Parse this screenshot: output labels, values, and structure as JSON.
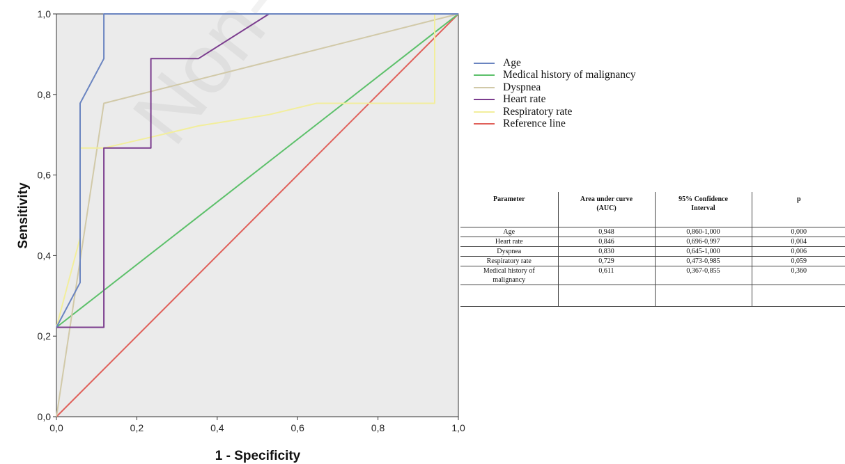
{
  "chart_data": {
    "type": "line",
    "xlabel": "1 - Specificity",
    "ylabel": "Sensitivity",
    "xlim": [
      0,
      1
    ],
    "ylim": [
      0,
      1
    ],
    "xticks": [
      "0,0",
      "0,2",
      "0,4",
      "0,6",
      "0,8",
      "1,0"
    ],
    "yticks": [
      "0,0",
      "0,2",
      "0,4",
      "0,6",
      "0,8",
      "1,0"
    ],
    "grid": false,
    "legend_position": "right",
    "series": [
      {
        "name": "Age",
        "color": "#6a84c0",
        "points": [
          [
            0,
            0.222
          ],
          [
            0.059,
            0.333
          ],
          [
            0.059,
            0.444
          ],
          [
            0.059,
            0.778
          ],
          [
            0.118,
            0.889
          ],
          [
            0.118,
            1.0
          ],
          [
            1.0,
            1.0
          ]
        ]
      },
      {
        "name": "Medical history of malignancy",
        "color": "#5cc06a",
        "points": [
          [
            0,
            0.222
          ],
          [
            1.0,
            1.0
          ]
        ]
      },
      {
        "name": "Dyspnea",
        "color": "#d1c9a8",
        "points": [
          [
            0,
            0
          ],
          [
            0.118,
            0.778
          ],
          [
            1.0,
            1.0
          ]
        ]
      },
      {
        "name": "Heart rate",
        "color": "#7b3c8e",
        "points": [
          [
            0,
            0.222
          ],
          [
            0.118,
            0.222
          ],
          [
            0.118,
            0.667
          ],
          [
            0.235,
            0.667
          ],
          [
            0.235,
            0.889
          ],
          [
            0.353,
            0.889
          ],
          [
            0.529,
            1.0
          ],
          [
            1.0,
            1.0
          ]
        ]
      },
      {
        "name": "Respiratory rate",
        "color": "#f2ee9c",
        "points": [
          [
            0,
            0.222
          ],
          [
            0.059,
            0.444
          ],
          [
            0.059,
            0.667
          ],
          [
            0.118,
            0.667
          ],
          [
            0.235,
            0.694
          ],
          [
            0.353,
            0.722
          ],
          [
            0.529,
            0.75
          ],
          [
            0.647,
            0.778
          ],
          [
            0.941,
            0.778
          ],
          [
            0.941,
            1.0
          ],
          [
            1.0,
            1.0
          ]
        ]
      },
      {
        "name": "Reference line",
        "color": "#e0605a",
        "points": [
          [
            0,
            0
          ],
          [
            1.0,
            1.0
          ]
        ]
      }
    ]
  },
  "legend": [
    {
      "label": "Age",
      "color": "#6a84c0"
    },
    {
      "label": "Medical history of malignancy",
      "color": "#5cc06a"
    },
    {
      "label": "Dyspnea",
      "color": "#d1c9a8"
    },
    {
      "label": "Heart rate",
      "color": "#7b3c8e"
    },
    {
      "label": "Respiratory rate",
      "color": "#f2ee9c"
    },
    {
      "label": "Reference line",
      "color": "#e0605a"
    }
  ],
  "table": {
    "headers": [
      "Parameter",
      "Area under curve (AUC)",
      "95% Confidence Interval",
      "p"
    ],
    "rows": [
      [
        "Age",
        "0,948",
        "0,860-1,000",
        "0,000"
      ],
      [
        "Heart rate",
        "0,846",
        "0,696-0,997",
        "0,004"
      ],
      [
        "Dyspnea",
        "0,830",
        "0,645-1,000",
        "0,006"
      ],
      [
        "Respiratory rate",
        "0,729",
        "0,473-0,985",
        "0,059"
      ],
      [
        "Medical history of malignancy",
        "0,611",
        "0,367-0,855",
        "0,360"
      ]
    ]
  },
  "watermark": "Non-com",
  "colors": {
    "plot_background": "#ebebeb"
  }
}
